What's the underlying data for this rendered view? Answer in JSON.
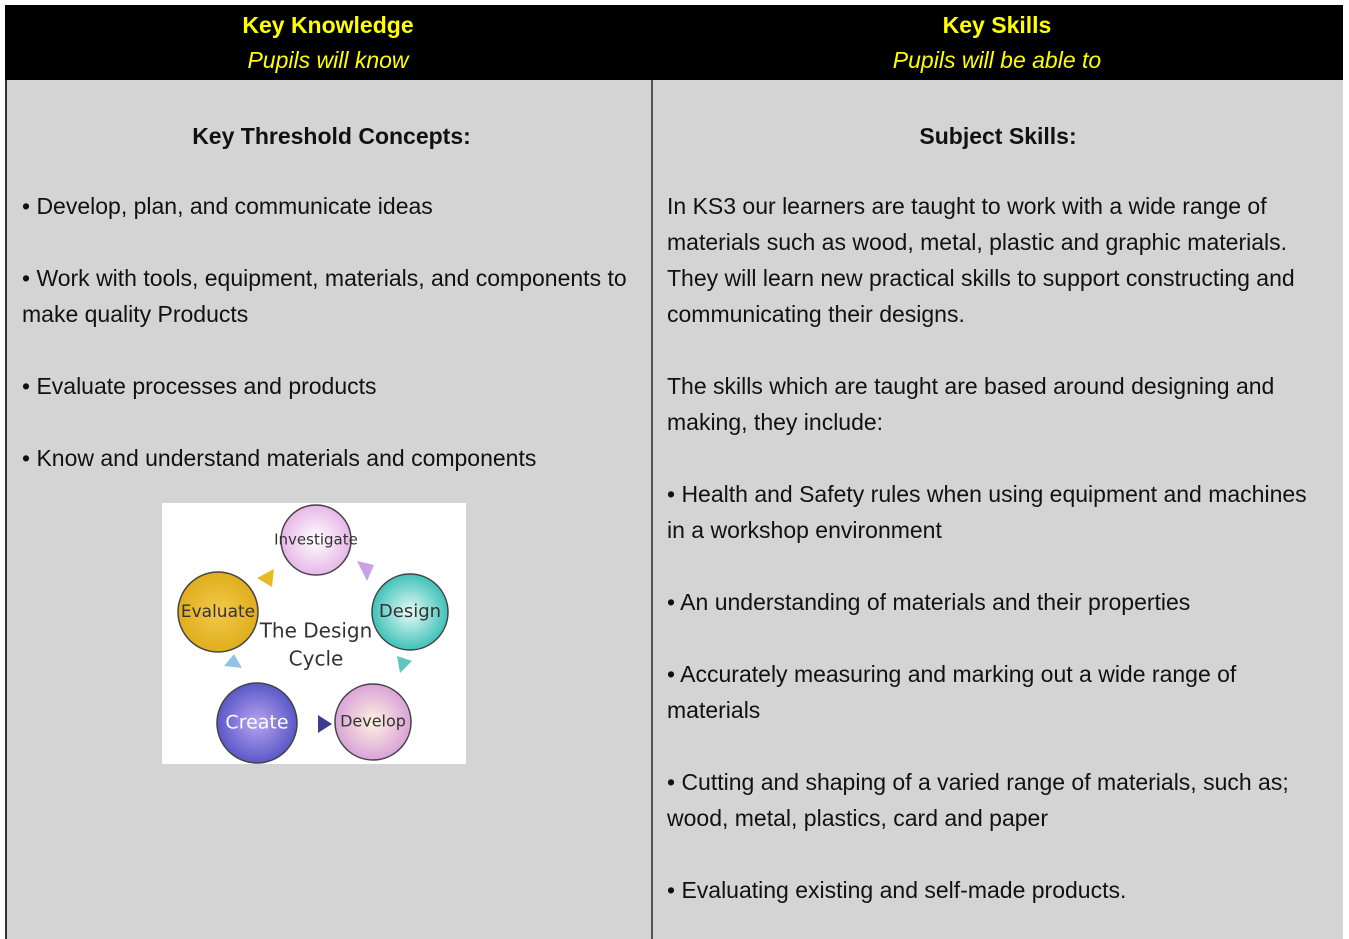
{
  "table": {
    "header": [
      {
        "title": "Key Knowledge",
        "subtitle": "Pupils will know"
      },
      {
        "title": "Key Skills",
        "subtitle": "Pupils will be able to"
      }
    ],
    "left": {
      "heading": "Key Threshold Concepts:",
      "items": [
        "• Develop, plan, and communicate ideas",
        "• Work with tools, equipment, materials, and components to make quality Products",
        "• Evaluate processes and products",
        "• Know and understand materials and components"
      ],
      "diagram": {
        "nodes": [
          "Investigate",
          "Design",
          "Develop",
          "Create",
          "Evaluate"
        ],
        "center": [
          "The Design",
          "Cycle"
        ]
      }
    },
    "right": {
      "heading": "Subject Skills:",
      "paragraphs": [
        "In KS3 our learners are taught to work with a wide range of materials such as wood, metal, plastic and graphic materials. They will learn new practical skills to support constructing and communicating their designs.",
        "The skills which are taught are based around designing and making, they include:"
      ],
      "items": [
        "• Health and Safety rules when using equipment and machines in a workshop environment",
        "• An understanding of materials and their properties",
        "• Accurately measuring and marking out a wide range of materials",
        "• Cutting and shaping of a varied range of materials, such as; wood, metal, plastics, card and paper",
        "• Evaluating existing and self-made products."
      ]
    }
  }
}
